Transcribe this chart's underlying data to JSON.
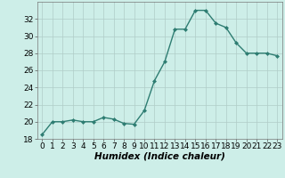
{
  "x": [
    0,
    1,
    2,
    3,
    4,
    5,
    6,
    7,
    8,
    9,
    10,
    11,
    12,
    13,
    14,
    15,
    16,
    17,
    18,
    19,
    20,
    21,
    22,
    23
  ],
  "y": [
    18.5,
    20.0,
    20.0,
    20.2,
    20.0,
    20.0,
    20.5,
    20.3,
    19.8,
    19.7,
    21.3,
    24.8,
    27.0,
    30.8,
    30.8,
    33.0,
    33.0,
    31.5,
    31.0,
    29.2,
    28.0,
    28.0,
    28.0,
    27.7
  ],
  "line_color": "#2e7d72",
  "marker": "D",
  "marker_size": 2.0,
  "bg_color": "#cdeee8",
  "grid_color": "#b0ccc8",
  "xlabel": "Humidex (Indice chaleur)",
  "ylim": [
    18,
    34
  ],
  "xlim": [
    -0.5,
    23.5
  ],
  "yticks": [
    18,
    20,
    22,
    24,
    26,
    28,
    30,
    32
  ],
  "xticks": [
    0,
    1,
    2,
    3,
    4,
    5,
    6,
    7,
    8,
    9,
    10,
    11,
    12,
    13,
    14,
    15,
    16,
    17,
    18,
    19,
    20,
    21,
    22,
    23
  ],
  "xlabel_fontsize": 7.5,
  "tick_fontsize": 6.5,
  "line_width": 1.0
}
